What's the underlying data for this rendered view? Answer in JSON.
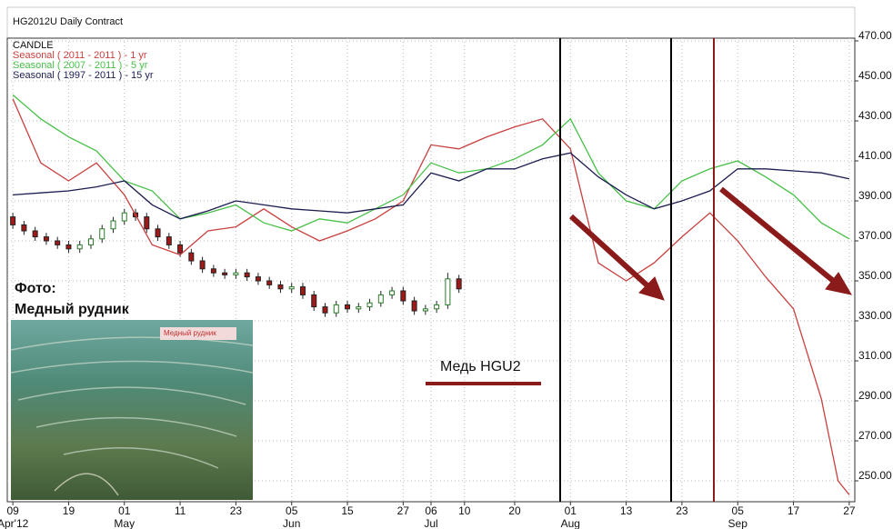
{
  "chart_data": {
    "type": "line",
    "title": "HG2012U Daily Contract",
    "xlim": [
      -1,
      151
    ],
    "ylim": [
      240,
      470
    ],
    "grid": true,
    "xticks": [
      {
        "value": 0,
        "label": "09"
      },
      {
        "value": 10,
        "label": "19"
      },
      {
        "value": 20,
        "label": "01"
      },
      {
        "value": 30,
        "label": "11"
      },
      {
        "value": 40,
        "label": "23"
      },
      {
        "value": 50,
        "label": "05"
      },
      {
        "value": 60,
        "label": "15"
      },
      {
        "value": 70,
        "label": "27"
      },
      {
        "value": 75,
        "label": "06"
      },
      {
        "value": 81,
        "label": "10"
      },
      {
        "value": 90,
        "label": "20"
      },
      {
        "value": 100,
        "label": "01"
      },
      {
        "value": 110,
        "label": "13"
      },
      {
        "value": 120,
        "label": "23"
      },
      {
        "value": 130,
        "label": "05"
      },
      {
        "value": 140,
        "label": "17"
      },
      {
        "value": 150,
        "label": "27"
      }
    ],
    "month_labels": [
      {
        "value": 0,
        "label": "Apr'12"
      },
      {
        "value": 20,
        "label": "May"
      },
      {
        "value": 50,
        "label": "Jun"
      },
      {
        "value": 75,
        "label": "Jul"
      },
      {
        "value": 100,
        "label": "Aug"
      },
      {
        "value": 130,
        "label": "Sep"
      }
    ],
    "yticks": [
      {
        "value": 470,
        "label": "470.00"
      },
      {
        "value": 450,
        "label": "450.00"
      },
      {
        "value": 430,
        "label": "430.00"
      },
      {
        "value": 410,
        "label": "410.00"
      },
      {
        "value": 390,
        "label": "390.00"
      },
      {
        "value": 370,
        "label": "370.00"
      },
      {
        "value": 350,
        "label": "350.00"
      },
      {
        "value": 330,
        "label": "330.00"
      },
      {
        "value": 310,
        "label": "310.00"
      },
      {
        "value": 290,
        "label": "290.00"
      },
      {
        "value": 270,
        "label": "270.00"
      },
      {
        "value": 250,
        "label": "250.00"
      }
    ],
    "series": [
      {
        "name": "CANDLE",
        "type": "candlestick",
        "color": "#a01818",
        "up_color": "#2a7a2a",
        "x": [
          0,
          2,
          4,
          6,
          8,
          10,
          12,
          14,
          16,
          18,
          20,
          22,
          24,
          26,
          28,
          30,
          32,
          34,
          36,
          38,
          40,
          42,
          44,
          46,
          48,
          50,
          52,
          54,
          56,
          58,
          60,
          62,
          64,
          66,
          68,
          70,
          72,
          74,
          76,
          78,
          80
        ],
        "open": [
          382,
          378,
          375,
          372,
          370,
          368,
          366,
          368,
          371,
          376,
          380,
          384,
          382,
          376,
          372,
          368,
          364,
          360,
          356,
          354,
          353,
          354,
          352,
          350,
          348,
          346,
          347,
          343,
          337,
          334,
          338,
          336,
          337,
          339,
          343,
          345,
          340,
          335,
          336,
          338,
          351
        ],
        "high": [
          384,
          380,
          377,
          374,
          372,
          370,
          370,
          373,
          378,
          382,
          386,
          386,
          384,
          378,
          374,
          370,
          366,
          362,
          358,
          356,
          356,
          356,
          354,
          352,
          350,
          349,
          349,
          345,
          339,
          340,
          340,
          339,
          341,
          345,
          347,
          347,
          342,
          338,
          340,
          354,
          353
        ],
        "low": [
          376,
          373,
          370,
          368,
          366,
          364,
          364,
          366,
          369,
          374,
          378,
          380,
          374,
          370,
          366,
          362,
          358,
          354,
          352,
          351,
          351,
          350,
          348,
          346,
          344,
          344,
          341,
          335,
          332,
          332,
          334,
          334,
          335,
          337,
          341,
          338,
          333,
          333,
          334,
          336,
          344
        ],
        "close": [
          378,
          375,
          372,
          370,
          368,
          366,
          368,
          371,
          376,
          380,
          384,
          382,
          376,
          372,
          368,
          364,
          360,
          356,
          354,
          353,
          354,
          352,
          350,
          348,
          346,
          347,
          343,
          337,
          334,
          338,
          336,
          337,
          339,
          343,
          345,
          340,
          335,
          336,
          338,
          351,
          346
        ]
      },
      {
        "name": "Seasonal ( 2011 - 2011 ) - 1 yr",
        "color": "#c8403f",
        "x": [
          0,
          5,
          10,
          15,
          20,
          25,
          30,
          35,
          40,
          45,
          50,
          55,
          60,
          65,
          70,
          75,
          80,
          85,
          90,
          95,
          100,
          105,
          110,
          115,
          120,
          125,
          130,
          135,
          140,
          145,
          148,
          150
        ],
        "values": [
          441,
          409,
          400,
          409,
          393,
          368,
          363,
          375,
          377,
          386,
          377,
          370,
          375,
          381,
          390,
          418,
          416,
          422,
          427,
          431,
          416,
          359,
          350,
          359,
          372,
          384,
          370,
          352,
          336,
          291,
          250,
          243
        ]
      },
      {
        "name": "Seasonal ( 2007 - 2011 ) - 5 yr",
        "color": "#48c048",
        "x": [
          0,
          5,
          10,
          15,
          20,
          25,
          30,
          35,
          40,
          45,
          50,
          55,
          60,
          65,
          70,
          75,
          80,
          85,
          90,
          95,
          100,
          105,
          110,
          115,
          120,
          125,
          130,
          135,
          140,
          145,
          150
        ],
        "values": [
          443,
          431,
          422,
          415,
          400,
          395,
          381,
          384,
          388,
          379,
          375,
          381,
          379,
          386,
          393,
          409,
          404,
          406,
          411,
          418,
          431,
          404,
          390,
          386,
          400,
          406,
          410,
          402,
          393,
          379,
          371
        ]
      },
      {
        "name": "Seasonal ( 1997 - 2011 ) - 15 yr",
        "color": "#1c1c50",
        "x": [
          0,
          5,
          10,
          15,
          20,
          25,
          30,
          35,
          40,
          45,
          50,
          55,
          60,
          65,
          70,
          75,
          80,
          85,
          90,
          95,
          100,
          105,
          110,
          115,
          120,
          125,
          130,
          135,
          140,
          145,
          150
        ],
        "values": [
          393,
          394,
          395,
          397,
          400,
          388,
          381,
          385,
          390,
          388,
          386,
          385,
          384,
          386,
          388,
          404,
          400,
          406,
          406,
          411,
          414,
          402,
          393,
          386,
          390,
          395,
          406,
          406,
          405,
          404,
          401
        ]
      }
    ],
    "annotations": [
      "Фото:",
      "Медный рудник",
      "Медный рудник",
      "Медь HGU2"
    ]
  }
}
